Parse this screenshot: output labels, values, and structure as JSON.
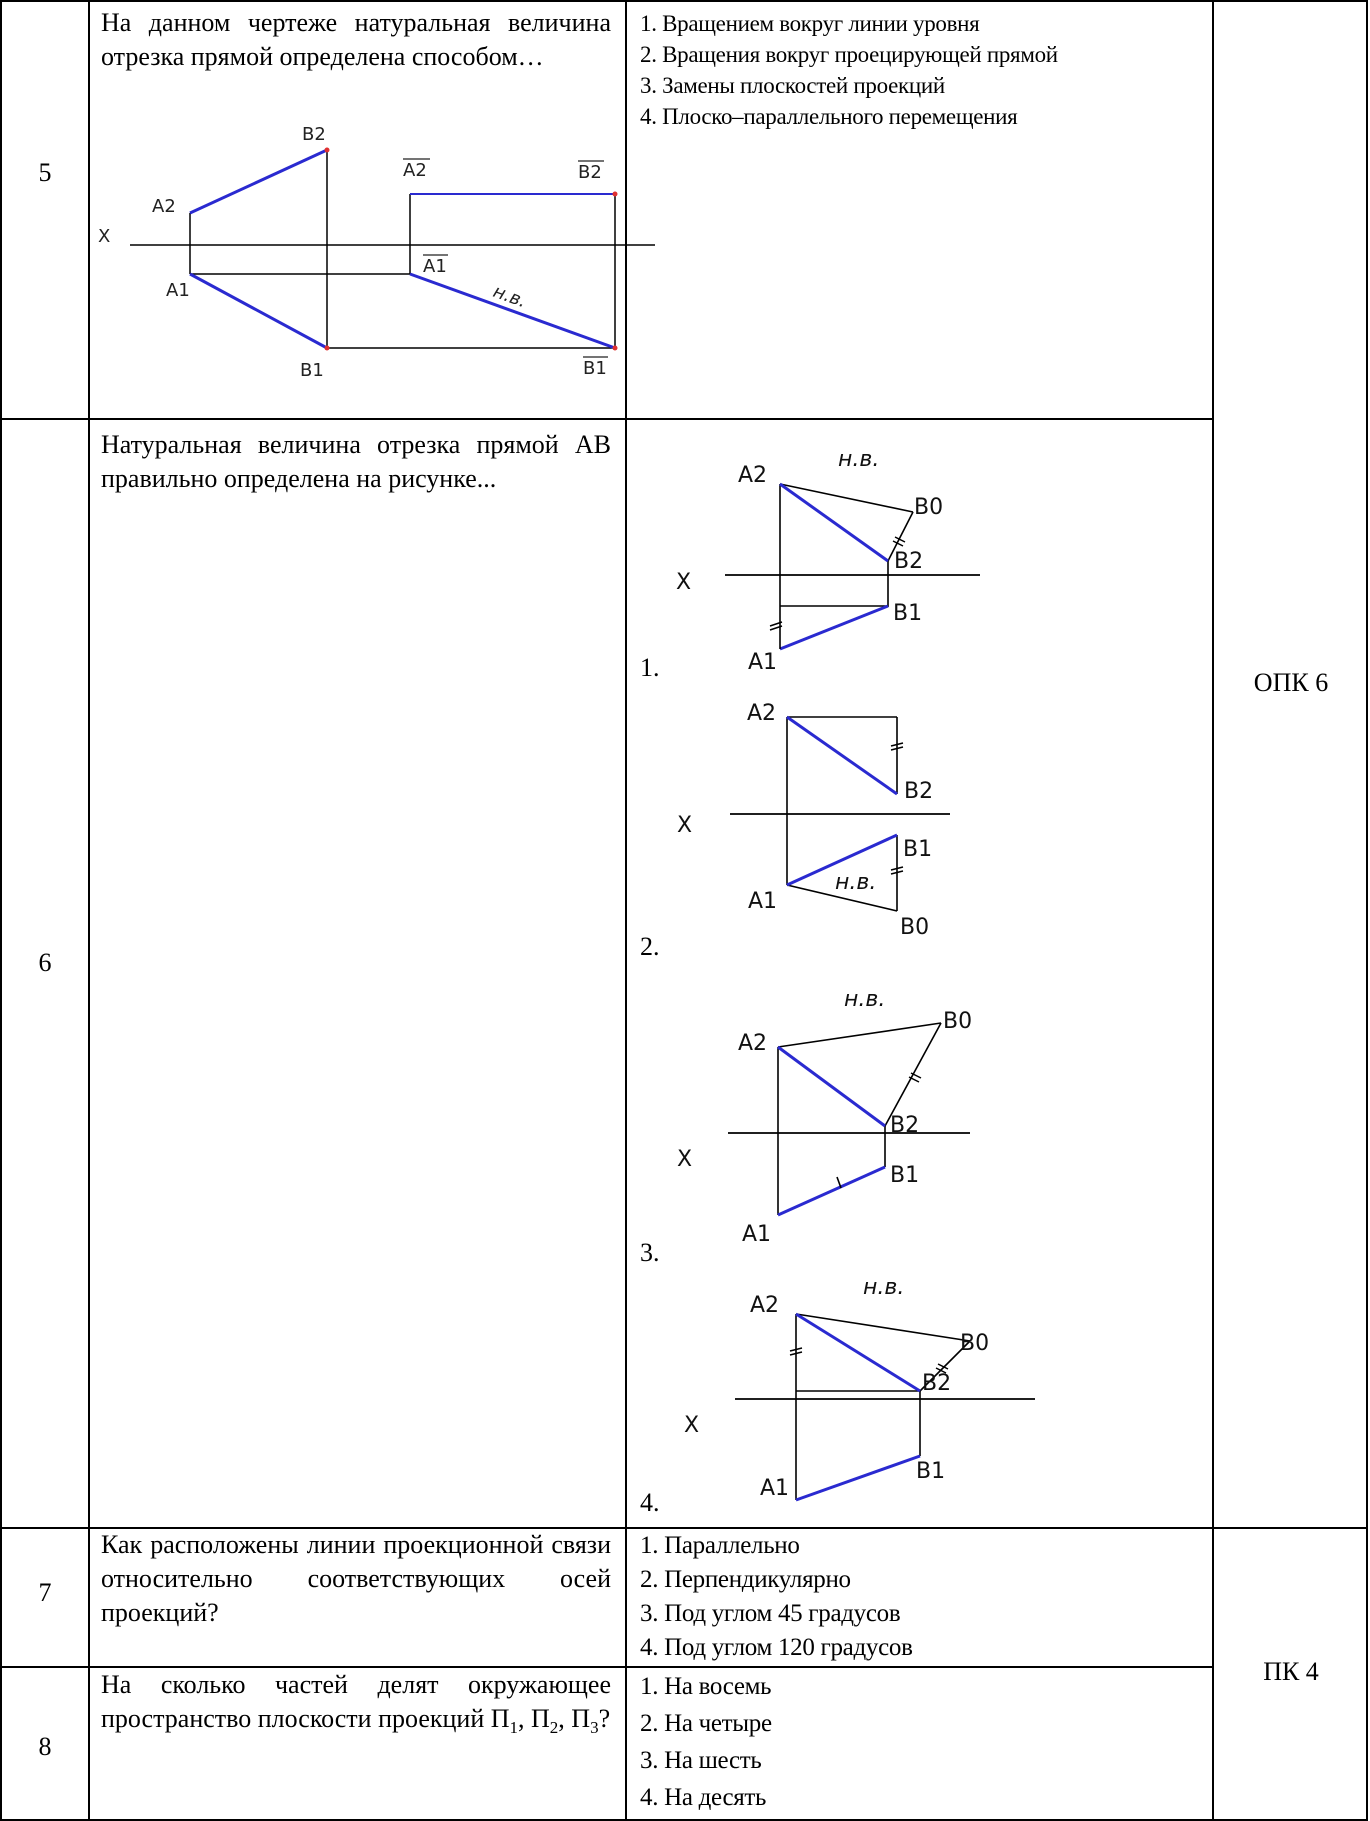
{
  "rows": [
    {
      "number": "5",
      "question": "На данном чертеже натуральная величина отрезка прямой определена способом…",
      "options": [
        "1. Вращением вокруг линии уровня",
        "2. Вращения вокруг проецирующей прямой",
        "3. Замены плоскостей проекций",
        "4. Плоско–параллельного перемещения"
      ],
      "figure_labels": {
        "a2": "A2",
        "b2": "B2",
        "a2bar": "A2",
        "b2bar": "B2",
        "x": "X",
        "a1": "A1",
        "a1bar": "A1",
        "nv": "н.в.",
        "b1": "B1",
        "b1bar": "B1"
      }
    },
    {
      "number": "6",
      "question": "Натуральная величина отрезка прямой АВ правильно определена на рисунке...",
      "option_numbers": [
        "1.",
        "2.",
        "3.",
        "4."
      ],
      "figure_labels": {
        "a2": "A2",
        "b2": "B2",
        "a1": "A1",
        "b1": "B1",
        "b0": "B0",
        "x": "X",
        "nv": "н.в."
      }
    },
    {
      "number": "7",
      "question": "Как расположены линии проекционной связи относительно соответствующих осей проекций?",
      "options": [
        "1. Параллельно",
        "2. Перпендикулярно",
        "3. Под углом 45 градусов",
        "4. Под углом 120 градусов"
      ]
    },
    {
      "number": "8",
      "question": "На сколько частей делят окружающее пространство плоскости проекций П1, П2, П3?",
      "question_parts": {
        "main": "На сколько частей делят окружающее пространство плоскости проекций П",
        "s1": "1",
        "sep1": ", П",
        "s2": "2",
        "sep2": ", П",
        "s3": "3",
        "end": "?"
      },
      "options": [
        "1. На восемь",
        "2. На четыре",
        "3. На шесть",
        "4. На десять"
      ]
    }
  ],
  "competencies": {
    "upper": "ОПК 6",
    "lower": "ПК 4"
  },
  "colors": {
    "segment": "#2a2ad0",
    "line": "#000000",
    "point": "#e03030"
  }
}
